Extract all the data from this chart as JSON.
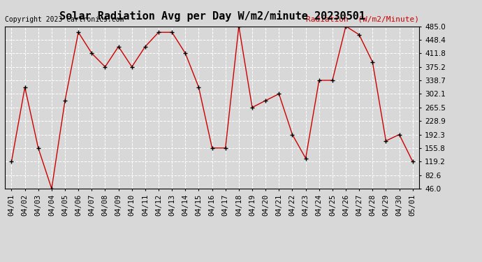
{
  "title": "Solar Radiation Avg per Day W/m2/minute 20230501",
  "copyright": "Copyright 2023 Cartronics.com",
  "legend_label": "Radiation  (W/m2/Minute)",
  "dates": [
    "04/01",
    "04/02",
    "04/03",
    "04/04",
    "04/05",
    "04/06",
    "04/07",
    "04/08",
    "04/09",
    "04/10",
    "04/11",
    "04/12",
    "04/13",
    "04/14",
    "04/15",
    "04/16",
    "04/17",
    "04/18",
    "04/19",
    "04/20",
    "04/21",
    "04/22",
    "04/23",
    "04/24",
    "04/25",
    "04/26",
    "04/27",
    "04/28",
    "04/29",
    "04/30",
    "05/01"
  ],
  "values": [
    119.2,
    320.0,
    155.8,
    46.0,
    284.0,
    468.5,
    411.8,
    375.2,
    430.0,
    375.2,
    430.0,
    468.5,
    468.5,
    411.8,
    320.0,
    155.8,
    155.8,
    485.0,
    265.5,
    284.0,
    302.1,
    192.3,
    128.0,
    338.7,
    338.7,
    485.0,
    462.0,
    388.0,
    175.0,
    192.3,
    119.2
  ],
  "ylim_min": 46.0,
  "ylim_max": 485.0,
  "yticks": [
    46.0,
    82.6,
    119.2,
    155.8,
    192.3,
    228.9,
    265.5,
    302.1,
    338.7,
    375.2,
    411.8,
    448.4,
    485.0
  ],
  "line_color": "#cc0000",
  "marker_color": "#000000",
  "bg_color": "#d8d8d8",
  "grid_color": "#ffffff",
  "title_fontsize": 11,
  "copyright_fontsize": 7,
  "legend_fontsize": 8,
  "tick_fontsize": 7.5
}
